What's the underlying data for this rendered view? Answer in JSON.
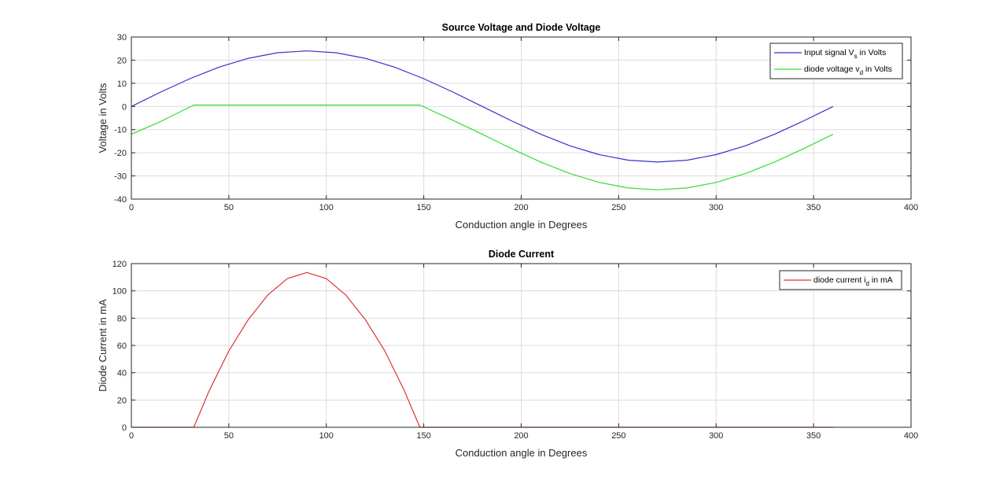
{
  "chart_data": [
    {
      "type": "line",
      "title": "Source Voltage and Diode Voltage",
      "xlabel": "Conduction angle in Degrees",
      "ylabel": "Voltage in Volts",
      "xlim": [
        0,
        400
      ],
      "ylim": [
        -40,
        30
      ],
      "xticks": [
        0,
        50,
        100,
        150,
        200,
        250,
        300,
        350,
        400
      ],
      "yticks": [
        -40,
        -30,
        -20,
        -10,
        0,
        10,
        20,
        30
      ],
      "grid": true,
      "legend_position": "top-right",
      "series": [
        {
          "name_main": "Input signal V",
          "name_sub": "s",
          "name_tail": " in Volts",
          "color": "#3333cc",
          "x": [
            0,
            15,
            30,
            45,
            60,
            75,
            90,
            105,
            120,
            135,
            150,
            165,
            180,
            195,
            210,
            225,
            240,
            255,
            270,
            285,
            300,
            315,
            330,
            345,
            360
          ],
          "y": [
            0,
            6.2,
            12.0,
            17.0,
            20.8,
            23.2,
            24.0,
            23.2,
            20.8,
            17.0,
            12.0,
            6.2,
            0,
            -6.2,
            -12.0,
            -17.0,
            -20.8,
            -23.2,
            -24.0,
            -23.2,
            -20.8,
            -17.0,
            -12.0,
            -6.2,
            0
          ]
        },
        {
          "name_main": "diode voltage v",
          "name_sub": "d",
          "name_tail": " in Volts",
          "color": "#33dd33",
          "x": [
            0,
            15,
            32,
            45,
            90,
            135,
            148,
            165,
            180,
            195,
            210,
            225,
            240,
            255,
            270,
            285,
            300,
            315,
            330,
            345,
            360
          ],
          "y": [
            -12.0,
            -6.5,
            0.6,
            0.6,
            0.6,
            0.6,
            0.6,
            -6.0,
            -12.0,
            -18.2,
            -24.0,
            -29.0,
            -32.8,
            -35.2,
            -36.0,
            -35.2,
            -32.8,
            -29.0,
            -24.0,
            -18.2,
            -12.0
          ]
        }
      ]
    },
    {
      "type": "line",
      "title": "Diode Current",
      "xlabel": "Conduction angle in Degrees",
      "ylabel": "Diode Current in mA",
      "xlim": [
        0,
        400
      ],
      "ylim": [
        0,
        120
      ],
      "xticks": [
        0,
        50,
        100,
        150,
        200,
        250,
        300,
        350,
        400
      ],
      "yticks": [
        0,
        20,
        40,
        60,
        80,
        100,
        120
      ],
      "grid": true,
      "legend_position": "top-right",
      "series": [
        {
          "name_main": "diode current i",
          "name_sub": "d",
          "name_tail": " in mA",
          "color": "#dd3333",
          "x": [
            0,
            32,
            40,
            50,
            60,
            70,
            80,
            90,
            100,
            110,
            120,
            130,
            140,
            148,
            160,
            200,
            250,
            300,
            360
          ],
          "y": [
            0,
            0,
            27,
            56,
            79,
            97,
            109,
            113.5,
            109,
            97,
            79,
            56,
            27,
            0,
            0,
            0,
            0,
            0,
            0
          ]
        }
      ]
    }
  ]
}
